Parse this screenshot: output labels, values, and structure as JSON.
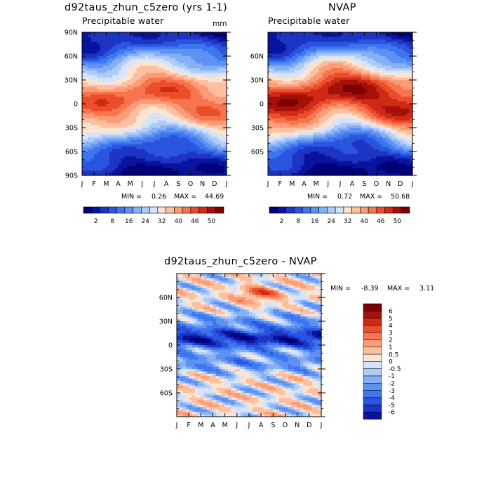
{
  "palette": {
    "precip_colors": [
      "#00007a",
      "#0a139e",
      "#1d35c4",
      "#2a55e0",
      "#3e76ef",
      "#5d92f3",
      "#85b0f6",
      "#aecbf8",
      "#d4e4fa",
      "#fde4d2",
      "#fcc0a0",
      "#fb9c76",
      "#f6754e",
      "#ec4d2c",
      "#cf2a16",
      "#a6100a",
      "#7c0000"
    ],
    "precip_label_indices": [
      1,
      4,
      7,
      10,
      13,
      16,
      19,
      22,
      25
    ],
    "diff_colors": [
      "#00007a",
      "#0a139e",
      "#1d35c4",
      "#2a55e0",
      "#3e76ef",
      "#5d92f3",
      "#85b0f6",
      "#aecbf8",
      "#d4e4fa",
      "#fde4d2",
      "#fcc0a0",
      "#fb9c76",
      "#f6754e",
      "#ec4d2c",
      "#cf2a16",
      "#a6100a",
      "#7c0000"
    ]
  },
  "chart_data": [
    {
      "type": "heatmap",
      "title": "d92taus_zhun_c5zero (yrs 1-1)",
      "subtitle": "Precipitable water",
      "units": "mm",
      "x_ticks": [
        "J",
        "F",
        "M",
        "A",
        "M",
        "J",
        "J",
        "A",
        "S",
        "O",
        "N",
        "D",
        "J"
      ],
      "y_ticks": [
        "90N",
        "60N",
        "30N",
        "0",
        "30S",
        "60S",
        "90S"
      ],
      "ylim": [
        -90,
        90
      ],
      "min_label": "MIN =",
      "min_value": "0.26",
      "max_label": "MAX =",
      "max_value": "44.69",
      "field_params": {
        "amplitude": 38,
        "equator_shift": 6,
        "seasonal_lat_shift": 10,
        "pole_min": 1.5,
        "width": 40
      },
      "colorbar_labels": [
        "2",
        "8",
        "16",
        "24",
        "32",
        "40",
        "46",
        "50"
      ]
    },
    {
      "type": "heatmap",
      "title": "NVAP",
      "subtitle": "Precipitable water",
      "y_ticks": [
        "60N",
        "30N",
        "0",
        "30S",
        "60S"
      ],
      "x_ticks": [
        "J",
        "F",
        "M",
        "A",
        "M",
        "J",
        "J",
        "A",
        "S",
        "O",
        "N",
        "D",
        "J"
      ],
      "ylim": [
        -90,
        90
      ],
      "min_label": "MIN =",
      "min_value": "0.72",
      "max_label": "MAX =",
      "max_value": "50.68",
      "field_params": {
        "amplitude": 44,
        "equator_shift": 7,
        "seasonal_lat_shift": 11,
        "pole_min": 2,
        "width": 37
      },
      "colorbar_labels": [
        "2",
        "8",
        "16",
        "24",
        "32",
        "40",
        "46",
        "50"
      ]
    },
    {
      "type": "heatmap",
      "title": "d92taus_zhun_c5zero - NVAP",
      "y_ticks": [
        "60N",
        "30N",
        "0",
        "30S",
        "60S"
      ],
      "x_ticks": [
        "J",
        "F",
        "M",
        "A",
        "M",
        "J",
        "J",
        "A",
        "S",
        "O",
        "N",
        "D",
        "J"
      ],
      "ylim": [
        -90,
        90
      ],
      "min_label": "MIN =",
      "min_value": "-8.39",
      "max_label": "MAX =",
      "max_value": "3.11",
      "colorbar_labels": [
        "6",
        "5",
        "4",
        "3",
        "2",
        "1",
        "0.5",
        "0",
        "-0.5",
        "-1",
        "-2",
        "-3",
        "-4",
        "-5",
        "-6"
      ]
    }
  ]
}
